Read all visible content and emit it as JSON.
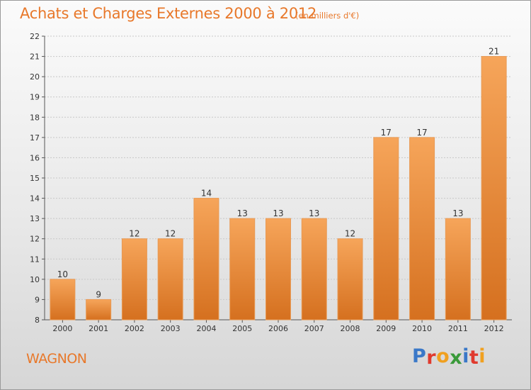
{
  "title": "Achats et Charges Externes 2000 à 2012",
  "subtitle": "(en milliers d'€)",
  "commune": "WAGNON",
  "brand": {
    "text": "Proxiti",
    "letter_colors": [
      "#3a78c8",
      "#e03a2e",
      "#f0a020",
      "#3a9a3a",
      "#3a78c8",
      "#e03a2e",
      "#f0a020"
    ]
  },
  "colors": {
    "bar_top": "#f6a55a",
    "bar_bottom": "#d5701f",
    "bar_edge": "#e89a55",
    "text_orange": "#e8782a",
    "axis_text": "#333333"
  },
  "chart_data": {
    "type": "bar",
    "categories": [
      "2000",
      "2001",
      "2002",
      "2003",
      "2004",
      "2005",
      "2006",
      "2007",
      "2008",
      "2009",
      "2010",
      "2011",
      "2012"
    ],
    "values": [
      10,
      9,
      12,
      12,
      14,
      13,
      13,
      13,
      12,
      17,
      17,
      13,
      21
    ],
    "data_labels": [
      "10",
      "9",
      "12",
      "12",
      "14",
      "13",
      "13",
      "13",
      "12",
      "17",
      "17",
      "13",
      "21"
    ],
    "yticks": [
      "8",
      "9",
      "10",
      "11",
      "12",
      "13",
      "14",
      "15",
      "16",
      "17",
      "18",
      "19",
      "20",
      "21",
      "22"
    ],
    "ylim": [
      8,
      22
    ],
    "grid": true,
    "legend": "none"
  }
}
